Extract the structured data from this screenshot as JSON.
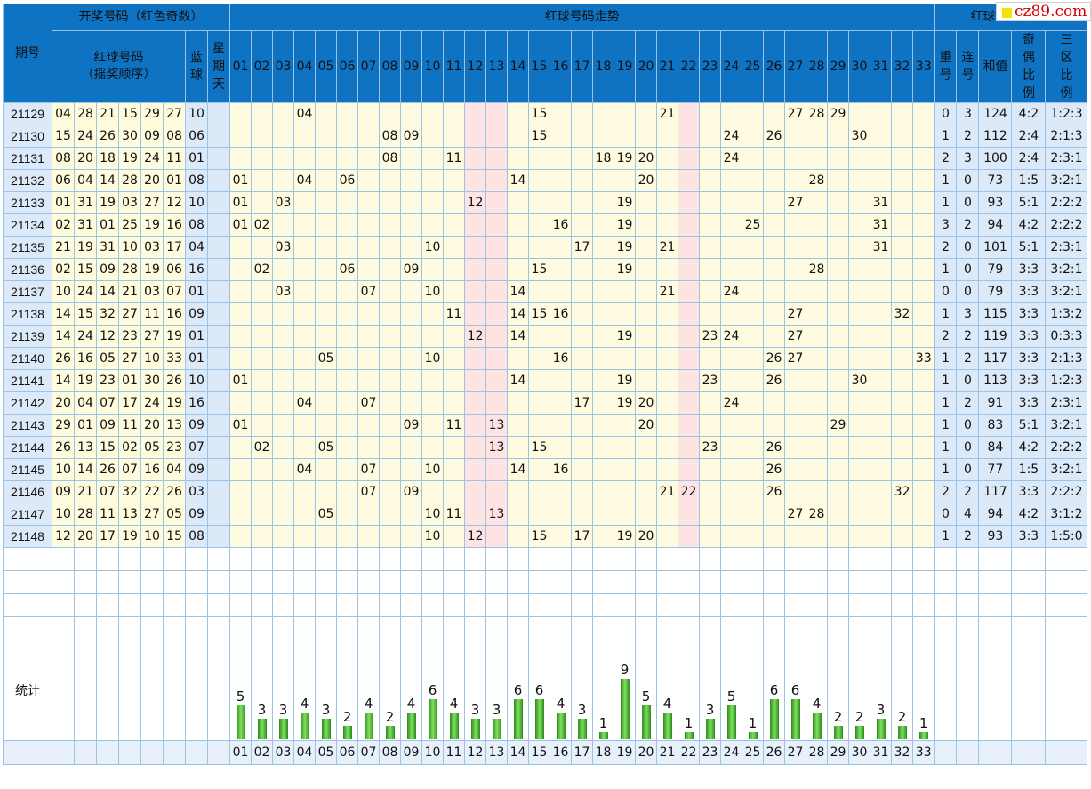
{
  "headers": {
    "period": "期号",
    "draw_group": "开奖号码（红色奇数）",
    "red_balls": "红球号码",
    "red_balls_order": "（摇奖顺序）",
    "blue_ball": "蓝球",
    "weekday": "星期天",
    "trend_group": "红球号码走势",
    "analysis_group": "红球号码分析",
    "repeat": "重号",
    "consecutive": "连号",
    "sum": "和值",
    "odd_even_ratio": "奇偶比例",
    "zone_ratio": "三区比例"
  },
  "trend_numbers": [
    "01",
    "02",
    "03",
    "04",
    "05",
    "06",
    "07",
    "08",
    "09",
    "10",
    "11",
    "12",
    "13",
    "14",
    "15",
    "16",
    "17",
    "18",
    "19",
    "20",
    "21",
    "22",
    "23",
    "24",
    "25",
    "26",
    "27",
    "28",
    "29",
    "30",
    "31",
    "32",
    "33"
  ],
  "rows": [
    {
      "period": "21129",
      "reds": [
        "04",
        "28",
        "21",
        "15",
        "29",
        "27"
      ],
      "blue": "10",
      "repeat": "0",
      "consecutive": "3",
      "sum": "124",
      "odd_even": "4:2",
      "zone": "1:2:3"
    },
    {
      "period": "21130",
      "reds": [
        "15",
        "24",
        "26",
        "30",
        "09",
        "08"
      ],
      "blue": "06",
      "repeat": "1",
      "consecutive": "2",
      "sum": "112",
      "odd_even": "2:4",
      "zone": "2:1:3"
    },
    {
      "period": "21131",
      "reds": [
        "08",
        "20",
        "18",
        "19",
        "24",
        "11"
      ],
      "blue": "01",
      "repeat": "2",
      "consecutive": "3",
      "sum": "100",
      "odd_even": "2:4",
      "zone": "2:3:1"
    },
    {
      "period": "21132",
      "reds": [
        "06",
        "04",
        "14",
        "28",
        "20",
        "01"
      ],
      "blue": "08",
      "repeat": "1",
      "consecutive": "0",
      "sum": "73",
      "odd_even": "1:5",
      "zone": "3:2:1"
    },
    {
      "period": "21133",
      "reds": [
        "01",
        "31",
        "19",
        "03",
        "27",
        "12"
      ],
      "blue": "10",
      "repeat": "1",
      "consecutive": "0",
      "sum": "93",
      "odd_even": "5:1",
      "zone": "2:2:2"
    },
    {
      "period": "21134",
      "reds": [
        "02",
        "31",
        "01",
        "25",
        "19",
        "16"
      ],
      "blue": "08",
      "repeat": "3",
      "consecutive": "2",
      "sum": "94",
      "odd_even": "4:2",
      "zone": "2:2:2"
    },
    {
      "period": "21135",
      "reds": [
        "21",
        "19",
        "31",
        "10",
        "03",
        "17"
      ],
      "blue": "04",
      "repeat": "2",
      "consecutive": "0",
      "sum": "101",
      "odd_even": "5:1",
      "zone": "2:3:1"
    },
    {
      "period": "21136",
      "reds": [
        "02",
        "15",
        "09",
        "28",
        "19",
        "06"
      ],
      "blue": "16",
      "repeat": "1",
      "consecutive": "0",
      "sum": "79",
      "odd_even": "3:3",
      "zone": "3:2:1"
    },
    {
      "period": "21137",
      "reds": [
        "10",
        "24",
        "14",
        "21",
        "03",
        "07"
      ],
      "blue": "01",
      "repeat": "0",
      "consecutive": "0",
      "sum": "79",
      "odd_even": "3:3",
      "zone": "3:2:1"
    },
    {
      "period": "21138",
      "reds": [
        "14",
        "15",
        "32",
        "27",
        "11",
        "16"
      ],
      "blue": "09",
      "repeat": "1",
      "consecutive": "3",
      "sum": "115",
      "odd_even": "3:3",
      "zone": "1:3:2"
    },
    {
      "period": "21139",
      "reds": [
        "14",
        "24",
        "12",
        "23",
        "27",
        "19"
      ],
      "blue": "01",
      "repeat": "2",
      "consecutive": "2",
      "sum": "119",
      "odd_even": "3:3",
      "zone": "0:3:3"
    },
    {
      "period": "21140",
      "reds": [
        "26",
        "16",
        "05",
        "27",
        "10",
        "33"
      ],
      "blue": "01",
      "repeat": "1",
      "consecutive": "2",
      "sum": "117",
      "odd_even": "3:3",
      "zone": "2:1:3"
    },
    {
      "period": "21141",
      "reds": [
        "14",
        "19",
        "23",
        "01",
        "30",
        "26"
      ],
      "blue": "10",
      "repeat": "1",
      "consecutive": "0",
      "sum": "113",
      "odd_even": "3:3",
      "zone": "1:2:3"
    },
    {
      "period": "21142",
      "reds": [
        "20",
        "04",
        "07",
        "17",
        "24",
        "19"
      ],
      "blue": "16",
      "repeat": "1",
      "consecutive": "2",
      "sum": "91",
      "odd_even": "3:3",
      "zone": "2:3:1"
    },
    {
      "period": "21143",
      "reds": [
        "29",
        "01",
        "09",
        "11",
        "20",
        "13"
      ],
      "blue": "09",
      "repeat": "1",
      "consecutive": "0",
      "sum": "83",
      "odd_even": "5:1",
      "zone": "3:2:1"
    },
    {
      "period": "21144",
      "reds": [
        "26",
        "13",
        "15",
        "02",
        "05",
        "23"
      ],
      "blue": "07",
      "repeat": "1",
      "consecutive": "0",
      "sum": "84",
      "odd_even": "4:2",
      "zone": "2:2:2"
    },
    {
      "period": "21145",
      "reds": [
        "10",
        "14",
        "26",
        "07",
        "16",
        "04"
      ],
      "blue": "09",
      "repeat": "1",
      "consecutive": "0",
      "sum": "77",
      "odd_even": "1:5",
      "zone": "3:2:1"
    },
    {
      "period": "21146",
      "reds": [
        "09",
        "21",
        "07",
        "32",
        "22",
        "26"
      ],
      "blue": "03",
      "repeat": "2",
      "consecutive": "2",
      "sum": "117",
      "odd_even": "3:3",
      "zone": "2:2:2"
    },
    {
      "period": "21147",
      "reds": [
        "10",
        "28",
        "11",
        "13",
        "27",
        "05"
      ],
      "blue": "09",
      "repeat": "0",
      "consecutive": "4",
      "sum": "94",
      "odd_even": "4:2",
      "zone": "3:1:2"
    },
    {
      "period": "21148",
      "reds": [
        "12",
        "20",
        "17",
        "19",
        "10",
        "15"
      ],
      "blue": "08",
      "repeat": "1",
      "consecutive": "2",
      "sum": "93",
      "odd_even": "3:3",
      "zone": "1:5:0"
    }
  ],
  "stats": {
    "label": "统计",
    "counts": [
      5,
      3,
      3,
      4,
      3,
      2,
      4,
      2,
      4,
      6,
      4,
      3,
      3,
      6,
      6,
      4,
      3,
      1,
      9,
      5,
      4,
      1,
      3,
      5,
      1,
      6,
      6,
      4,
      2,
      2,
      3,
      2,
      1
    ]
  },
  "chart_data": {
    "type": "bar",
    "categories": [
      "01",
      "02",
      "03",
      "04",
      "05",
      "06",
      "07",
      "08",
      "09",
      "10",
      "11",
      "12",
      "13",
      "14",
      "15",
      "16",
      "17",
      "18",
      "19",
      "20",
      "21",
      "22",
      "23",
      "24",
      "25",
      "26",
      "27",
      "28",
      "29",
      "30",
      "31",
      "32",
      "33"
    ],
    "values": [
      5,
      3,
      3,
      4,
      3,
      2,
      4,
      2,
      4,
      6,
      4,
      3,
      3,
      6,
      6,
      4,
      3,
      1,
      9,
      5,
      4,
      1,
      3,
      5,
      1,
      6,
      6,
      4,
      2,
      2,
      3,
      2,
      1
    ],
    "title": "",
    "xlabel": "",
    "ylabel": "",
    "ylim": [
      0,
      9
    ]
  },
  "logo": {
    "text": "cz89.com"
  },
  "colors": {
    "header": "#0f73c4",
    "odd": "#e60000",
    "trend_bg": "#fffbe0",
    "trend_pink": "#fde4e2",
    "side_bg": "#dbe9f9",
    "bar": "#3ca52b"
  }
}
